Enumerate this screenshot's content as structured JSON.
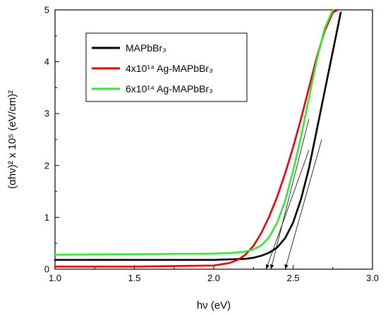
{
  "chart_data": {
    "type": "line",
    "xlabel": "hν (eV)",
    "ylabel": "(αhν)² x 10⁵ (eV/cm)²",
    "xlim": [
      1.0,
      3.0
    ],
    "ylim": [
      0,
      5
    ],
    "xticks": [
      "1.0",
      "1.5",
      "2.0",
      "2.5",
      "3.0"
    ],
    "yticks": [
      "0",
      "1",
      "2",
      "3",
      "4",
      "5"
    ],
    "grid": false,
    "legend_position": "top-left",
    "series": [
      {
        "name": "MAPbBr₃",
        "color": "#000000",
        "x": [
          1.0,
          1.5,
          2.0,
          2.1,
          2.2,
          2.25,
          2.3,
          2.35,
          2.4,
          2.45,
          2.5,
          2.55,
          2.6,
          2.65,
          2.7,
          2.75,
          2.8
        ],
        "y": [
          0.18,
          0.18,
          0.18,
          0.19,
          0.2,
          0.22,
          0.26,
          0.32,
          0.42,
          0.6,
          0.9,
          1.35,
          1.95,
          2.7,
          3.45,
          4.2,
          4.95
        ]
      },
      {
        "name": "4x10¹⁴ Ag-MAPbBr₃",
        "color": "#e8000b",
        "x": [
          1.0,
          1.5,
          2.0,
          2.1,
          2.15,
          2.2,
          2.25,
          2.3,
          2.35,
          2.4,
          2.45,
          2.5,
          2.55,
          2.6,
          2.65,
          2.7,
          2.75,
          2.78
        ],
        "y": [
          0.05,
          0.05,
          0.07,
          0.12,
          0.18,
          0.28,
          0.45,
          0.7,
          1.02,
          1.4,
          1.85,
          2.35,
          2.9,
          3.5,
          4.1,
          4.6,
          4.95,
          5.0
        ]
      },
      {
        "name": "6x10¹⁴ Ag-MAPbBr₃",
        "color": "#33e633",
        "x": [
          1.0,
          1.5,
          2.0,
          2.1,
          2.2,
          2.25,
          2.3,
          2.35,
          2.4,
          2.45,
          2.5,
          2.55,
          2.6,
          2.65,
          2.7,
          2.75
        ],
        "y": [
          0.28,
          0.29,
          0.3,
          0.31,
          0.34,
          0.38,
          0.46,
          0.62,
          0.9,
          1.32,
          1.9,
          2.55,
          3.3,
          4.05,
          4.65,
          5.0
        ]
      }
    ],
    "tangent_lines": [
      {
        "from": [
          2.6,
          2.3
        ],
        "to": [
          2.33,
          0.0
        ]
      },
      {
        "from": [
          2.6,
          2.9
        ],
        "to": [
          2.36,
          0.0
        ]
      },
      {
        "from": [
          2.68,
          2.5
        ],
        "to": [
          2.45,
          0.0
        ]
      }
    ]
  }
}
